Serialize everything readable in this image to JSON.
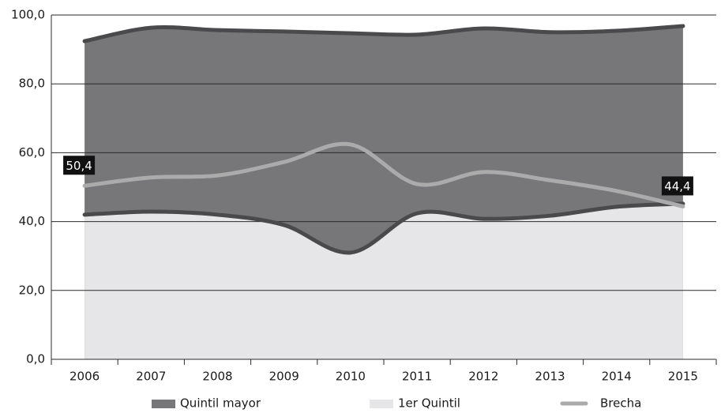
{
  "chart_data": {
    "type": "area",
    "categories": [
      "2006",
      "2007",
      "2008",
      "2009",
      "2010",
      "2011",
      "2012",
      "2013",
      "2014",
      "2015"
    ],
    "series": [
      {
        "name": "Quintil mayor",
        "color": "#77777a",
        "line_color": "#4a4a4c",
        "values": [
          92.4,
          96.3,
          95.6,
          95.2,
          94.7,
          94.3,
          96.1,
          95.0,
          95.4,
          96.8
        ]
      },
      {
        "name": "1er Quintil",
        "color": "#e6e6e8",
        "line_color": "#4a4a4c",
        "values": [
          42.0,
          42.9,
          42.0,
          39.0,
          31.0,
          42.4,
          40.8,
          41.7,
          44.3,
          45.2
        ]
      },
      {
        "name": "Brecha",
        "color": "#ababab",
        "type": "line",
        "values": [
          50.4,
          52.8,
          53.4,
          57.3,
          62.4,
          50.9,
          54.4,
          52.0,
          48.9,
          44.4
        ],
        "value_labels": [
          "50,4",
          null,
          null,
          null,
          null,
          null,
          null,
          null,
          null,
          "44,4"
        ]
      }
    ],
    "ylim": [
      0,
      100
    ],
    "yticks": [
      {
        "value": 0,
        "label": "0,0"
      },
      {
        "value": 20,
        "label": "20,0"
      },
      {
        "value": 40,
        "label": "40,0"
      },
      {
        "value": 60,
        "label": "60,0"
      },
      {
        "value": 80,
        "label": "80,0"
      },
      {
        "value": 100,
        "label": "100,0"
      }
    ],
    "grid": true,
    "legend": "bottom"
  }
}
